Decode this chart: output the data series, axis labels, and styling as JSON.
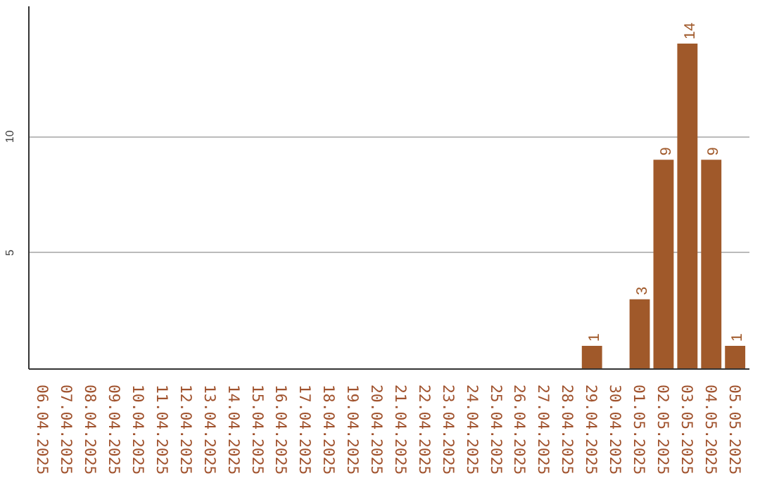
{
  "chart_data": {
    "type": "bar",
    "categories": [
      "06.04.2025",
      "07.04.2025",
      "08.04.2025",
      "09.04.2025",
      "10.04.2025",
      "11.04.2025",
      "12.04.2025",
      "13.04.2025",
      "14.04.2025",
      "15.04.2025",
      "16.04.2025",
      "17.04.2025",
      "18.04.2025",
      "19.04.2025",
      "20.04.2025",
      "21.04.2025",
      "22.04.2025",
      "23.04.2025",
      "24.04.2025",
      "25.04.2025",
      "26.04.2025",
      "27.04.2025",
      "28.04.2025",
      "29.04.2025",
      "30.04.2025",
      "01.05.2025",
      "02.05.2025",
      "03.05.2025",
      "04.05.2025",
      "05.05.2025"
    ],
    "values": [
      0,
      0,
      0,
      0,
      0,
      0,
      0,
      0,
      0,
      0,
      0,
      0,
      0,
      0,
      0,
      0,
      0,
      0,
      0,
      0,
      0,
      0,
      0,
      1,
      0,
      3,
      9,
      14,
      9,
      1
    ],
    "value_labels": [
      null,
      null,
      null,
      null,
      null,
      null,
      null,
      null,
      null,
      null,
      null,
      null,
      null,
      null,
      null,
      null,
      null,
      null,
      null,
      null,
      null,
      null,
      null,
      "1",
      null,
      "3",
      "9",
      "14",
      "9",
      "1"
    ],
    "color": "#a0592a",
    "ylim": [
      0,
      15.6
    ],
    "yticks": [
      5,
      10
    ],
    "grid": "y"
  }
}
